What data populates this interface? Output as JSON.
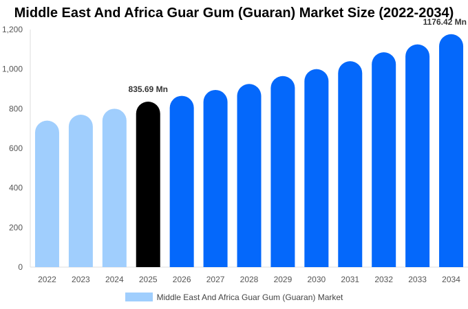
{
  "chart_data": {
    "type": "bar",
    "title": "Middle East And Africa Guar Gum (Guaran) Market Size (2022-2034)",
    "categories": [
      "2022",
      "2023",
      "2024",
      "2025",
      "2026",
      "2027",
      "2028",
      "2029",
      "2030",
      "2031",
      "2032",
      "2033",
      "2034"
    ],
    "series": [
      {
        "name": "Middle East And Africa Guar Gum (Guaran) Market",
        "values": [
          740,
          770,
          800,
          835.69,
          865,
          895,
          925,
          965,
          1000,
          1040,
          1085,
          1125,
          1176.42
        ]
      }
    ],
    "bar_roles": [
      "historical",
      "historical",
      "historical",
      "base",
      "forecast",
      "forecast",
      "forecast",
      "forecast",
      "forecast",
      "forecast",
      "forecast",
      "forecast",
      "forecast"
    ],
    "colors": {
      "historical": "#a0cefd",
      "base": "#000000",
      "forecast": "#0468fb"
    },
    "data_labels": [
      {
        "index": 3,
        "text": "835.69 Mn"
      },
      {
        "index": 12,
        "text": "1176.42 Mn"
      }
    ],
    "y_ticks": [
      "0",
      "200",
      "400",
      "600",
      "800",
      "1,000",
      "1,200"
    ],
    "y_tick_values": [
      0,
      200,
      400,
      600,
      800,
      1000,
      1200
    ],
    "ylim": [
      0,
      1200
    ],
    "grid": false,
    "legend_position": "bottom"
  }
}
